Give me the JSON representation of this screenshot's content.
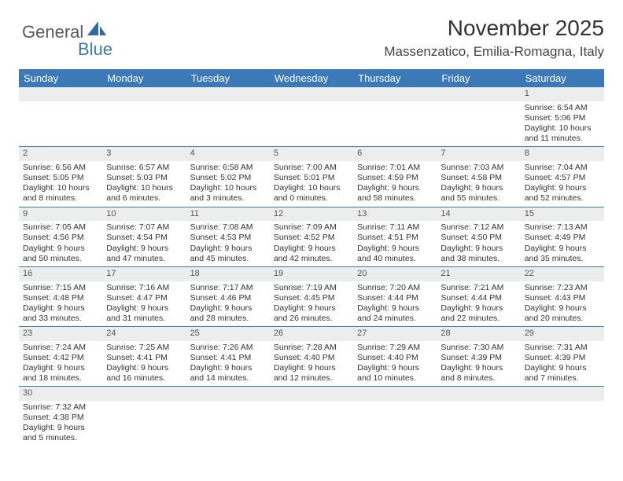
{
  "logo": {
    "text1": "General",
    "text2": "Blue"
  },
  "title": "November 2025",
  "location": "Massenzatico, Emilia-Romagna, Italy",
  "colors": {
    "header_bg": "#3b79b8",
    "header_text": "#ffffff",
    "daynum_bg": "#eceded",
    "divider": "#3b79b8",
    "body_bg": "#ffffff",
    "text": "#333333",
    "logo_gray": "#5a5a5a",
    "logo_blue": "#3b79b8"
  },
  "typography": {
    "title_fontsize": 28,
    "location_fontsize": 17,
    "dayheader_fontsize": 13,
    "cell_fontsize": 10.5
  },
  "day_headers": [
    "Sunday",
    "Monday",
    "Tuesday",
    "Wednesday",
    "Thursday",
    "Friday",
    "Saturday"
  ],
  "weeks": [
    [
      {
        "empty": true
      },
      {
        "empty": true
      },
      {
        "empty": true
      },
      {
        "empty": true
      },
      {
        "empty": true
      },
      {
        "empty": true
      },
      {
        "n": "1",
        "sunrise": "Sunrise: 6:54 AM",
        "sunset": "Sunset: 5:06 PM",
        "daylight1": "Daylight: 10 hours",
        "daylight2": "and 11 minutes."
      }
    ],
    [
      {
        "n": "2",
        "sunrise": "Sunrise: 6:56 AM",
        "sunset": "Sunset: 5:05 PM",
        "daylight1": "Daylight: 10 hours",
        "daylight2": "and 8 minutes."
      },
      {
        "n": "3",
        "sunrise": "Sunrise: 6:57 AM",
        "sunset": "Sunset: 5:03 PM",
        "daylight1": "Daylight: 10 hours",
        "daylight2": "and 6 minutes."
      },
      {
        "n": "4",
        "sunrise": "Sunrise: 6:58 AM",
        "sunset": "Sunset: 5:02 PM",
        "daylight1": "Daylight: 10 hours",
        "daylight2": "and 3 minutes."
      },
      {
        "n": "5",
        "sunrise": "Sunrise: 7:00 AM",
        "sunset": "Sunset: 5:01 PM",
        "daylight1": "Daylight: 10 hours",
        "daylight2": "and 0 minutes."
      },
      {
        "n": "6",
        "sunrise": "Sunrise: 7:01 AM",
        "sunset": "Sunset: 4:59 PM",
        "daylight1": "Daylight: 9 hours",
        "daylight2": "and 58 minutes."
      },
      {
        "n": "7",
        "sunrise": "Sunrise: 7:03 AM",
        "sunset": "Sunset: 4:58 PM",
        "daylight1": "Daylight: 9 hours",
        "daylight2": "and 55 minutes."
      },
      {
        "n": "8",
        "sunrise": "Sunrise: 7:04 AM",
        "sunset": "Sunset: 4:57 PM",
        "daylight1": "Daylight: 9 hours",
        "daylight2": "and 52 minutes."
      }
    ],
    [
      {
        "n": "9",
        "sunrise": "Sunrise: 7:05 AM",
        "sunset": "Sunset: 4:56 PM",
        "daylight1": "Daylight: 9 hours",
        "daylight2": "and 50 minutes."
      },
      {
        "n": "10",
        "sunrise": "Sunrise: 7:07 AM",
        "sunset": "Sunset: 4:54 PM",
        "daylight1": "Daylight: 9 hours",
        "daylight2": "and 47 minutes."
      },
      {
        "n": "11",
        "sunrise": "Sunrise: 7:08 AM",
        "sunset": "Sunset: 4:53 PM",
        "daylight1": "Daylight: 9 hours",
        "daylight2": "and 45 minutes."
      },
      {
        "n": "12",
        "sunrise": "Sunrise: 7:09 AM",
        "sunset": "Sunset: 4:52 PM",
        "daylight1": "Daylight: 9 hours",
        "daylight2": "and 42 minutes."
      },
      {
        "n": "13",
        "sunrise": "Sunrise: 7:11 AM",
        "sunset": "Sunset: 4:51 PM",
        "daylight1": "Daylight: 9 hours",
        "daylight2": "and 40 minutes."
      },
      {
        "n": "14",
        "sunrise": "Sunrise: 7:12 AM",
        "sunset": "Sunset: 4:50 PM",
        "daylight1": "Daylight: 9 hours",
        "daylight2": "and 38 minutes."
      },
      {
        "n": "15",
        "sunrise": "Sunrise: 7:13 AM",
        "sunset": "Sunset: 4:49 PM",
        "daylight1": "Daylight: 9 hours",
        "daylight2": "and 35 minutes."
      }
    ],
    [
      {
        "n": "16",
        "sunrise": "Sunrise: 7:15 AM",
        "sunset": "Sunset: 4:48 PM",
        "daylight1": "Daylight: 9 hours",
        "daylight2": "and 33 minutes."
      },
      {
        "n": "17",
        "sunrise": "Sunrise: 7:16 AM",
        "sunset": "Sunset: 4:47 PM",
        "daylight1": "Daylight: 9 hours",
        "daylight2": "and 31 minutes."
      },
      {
        "n": "18",
        "sunrise": "Sunrise: 7:17 AM",
        "sunset": "Sunset: 4:46 PM",
        "daylight1": "Daylight: 9 hours",
        "daylight2": "and 28 minutes."
      },
      {
        "n": "19",
        "sunrise": "Sunrise: 7:19 AM",
        "sunset": "Sunset: 4:45 PM",
        "daylight1": "Daylight: 9 hours",
        "daylight2": "and 26 minutes."
      },
      {
        "n": "20",
        "sunrise": "Sunrise: 7:20 AM",
        "sunset": "Sunset: 4:44 PM",
        "daylight1": "Daylight: 9 hours",
        "daylight2": "and 24 minutes."
      },
      {
        "n": "21",
        "sunrise": "Sunrise: 7:21 AM",
        "sunset": "Sunset: 4:44 PM",
        "daylight1": "Daylight: 9 hours",
        "daylight2": "and 22 minutes."
      },
      {
        "n": "22",
        "sunrise": "Sunrise: 7:23 AM",
        "sunset": "Sunset: 4:43 PM",
        "daylight1": "Daylight: 9 hours",
        "daylight2": "and 20 minutes."
      }
    ],
    [
      {
        "n": "23",
        "sunrise": "Sunrise: 7:24 AM",
        "sunset": "Sunset: 4:42 PM",
        "daylight1": "Daylight: 9 hours",
        "daylight2": "and 18 minutes."
      },
      {
        "n": "24",
        "sunrise": "Sunrise: 7:25 AM",
        "sunset": "Sunset: 4:41 PM",
        "daylight1": "Daylight: 9 hours",
        "daylight2": "and 16 minutes."
      },
      {
        "n": "25",
        "sunrise": "Sunrise: 7:26 AM",
        "sunset": "Sunset: 4:41 PM",
        "daylight1": "Daylight: 9 hours",
        "daylight2": "and 14 minutes."
      },
      {
        "n": "26",
        "sunrise": "Sunrise: 7:28 AM",
        "sunset": "Sunset: 4:40 PM",
        "daylight1": "Daylight: 9 hours",
        "daylight2": "and 12 minutes."
      },
      {
        "n": "27",
        "sunrise": "Sunrise: 7:29 AM",
        "sunset": "Sunset: 4:40 PM",
        "daylight1": "Daylight: 9 hours",
        "daylight2": "and 10 minutes."
      },
      {
        "n": "28",
        "sunrise": "Sunrise: 7:30 AM",
        "sunset": "Sunset: 4:39 PM",
        "daylight1": "Daylight: 9 hours",
        "daylight2": "and 8 minutes."
      },
      {
        "n": "29",
        "sunrise": "Sunrise: 7:31 AM",
        "sunset": "Sunset: 4:39 PM",
        "daylight1": "Daylight: 9 hours",
        "daylight2": "and 7 minutes."
      }
    ],
    [
      {
        "n": "30",
        "sunrise": "Sunrise: 7:32 AM",
        "sunset": "Sunset: 4:38 PM",
        "daylight1": "Daylight: 9 hours",
        "daylight2": "and 5 minutes."
      },
      {
        "empty": true
      },
      {
        "empty": true
      },
      {
        "empty": true
      },
      {
        "empty": true
      },
      {
        "empty": true
      },
      {
        "empty": true
      }
    ]
  ]
}
